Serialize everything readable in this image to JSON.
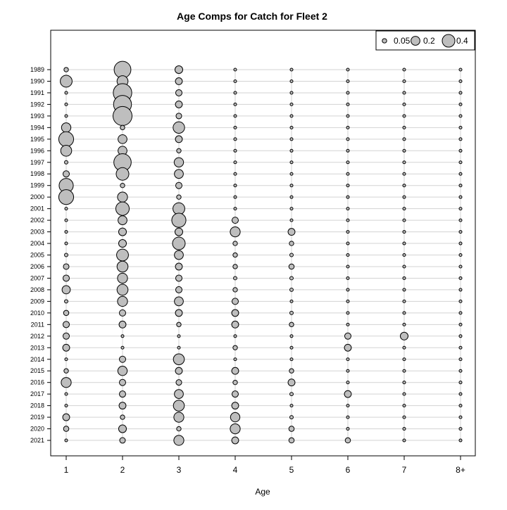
{
  "chart_data": {
    "type": "scatter",
    "title": "Age Comps for Catch for Fleet 2",
    "xlabel": "Age",
    "ylabel": "",
    "x_tick_labels": [
      "1",
      "2",
      "3",
      "4",
      "5",
      "6",
      "7",
      "8+"
    ],
    "years": [
      1989,
      1990,
      1991,
      1992,
      1993,
      1994,
      1995,
      1996,
      1997,
      1998,
      1999,
      2000,
      2001,
      2002,
      2003,
      2004,
      2005,
      2006,
      2007,
      2008,
      2009,
      2010,
      2011,
      2012,
      2013,
      2014,
      2015,
      2016,
      2017,
      2018,
      2019,
      2020,
      2021
    ],
    "grid": true,
    "legend_position": "top-right",
    "legend": [
      {
        "label": "0.05",
        "value": 0.05
      },
      {
        "label": "0.2",
        "value": 0.2
      },
      {
        "label": "0.4",
        "value": 0.4
      }
    ],
    "bubble_fill": "#bebebe",
    "bubble_stroke": "#000000",
    "grid_color": "#d3d3d3",
    "proportions": [
      [
        0.05,
        0.7,
        0.15,
        0.02,
        0.02,
        0.02,
        0.02,
        0.02
      ],
      [
        0.35,
        0.3,
        0.12,
        0.02,
        0.02,
        0.02,
        0.02,
        0.02
      ],
      [
        0.02,
        0.85,
        0.1,
        0.02,
        0.02,
        0.02,
        0.02,
        0.02
      ],
      [
        0.02,
        0.8,
        0.12,
        0.02,
        0.02,
        0.02,
        0.02,
        0.02
      ],
      [
        0.02,
        0.9,
        0.08,
        0.02,
        0.02,
        0.02,
        0.02,
        0.02
      ],
      [
        0.22,
        0.05,
        0.33,
        0.02,
        0.02,
        0.02,
        0.02,
        0.02
      ],
      [
        0.55,
        0.2,
        0.12,
        0.02,
        0.02,
        0.02,
        0.02,
        0.02
      ],
      [
        0.3,
        0.2,
        0.05,
        0.02,
        0.02,
        0.02,
        0.02,
        0.02
      ],
      [
        0.03,
        0.75,
        0.22,
        0.02,
        0.02,
        0.02,
        0.02,
        0.02
      ],
      [
        0.1,
        0.4,
        0.2,
        0.02,
        0.02,
        0.02,
        0.02,
        0.02
      ],
      [
        0.5,
        0.05,
        0.1,
        0.02,
        0.02,
        0.02,
        0.02,
        0.02
      ],
      [
        0.55,
        0.25,
        0.05,
        0.02,
        0.02,
        0.02,
        0.02,
        0.02
      ],
      [
        0.02,
        0.45,
        0.35,
        0.02,
        0.02,
        0.02,
        0.02,
        0.02
      ],
      [
        0.02,
        0.2,
        0.5,
        0.1,
        0.02,
        0.02,
        0.02,
        0.02
      ],
      [
        0.02,
        0.15,
        0.15,
        0.25,
        0.12,
        0.02,
        0.02,
        0.02
      ],
      [
        0.02,
        0.15,
        0.4,
        0.05,
        0.05,
        0.02,
        0.02,
        0.02
      ],
      [
        0.03,
        0.35,
        0.2,
        0.05,
        0.03,
        0.02,
        0.02,
        0.02
      ],
      [
        0.08,
        0.3,
        0.12,
        0.05,
        0.07,
        0.02,
        0.02,
        0.02
      ],
      [
        0.1,
        0.25,
        0.1,
        0.03,
        0.03,
        0.02,
        0.02,
        0.02
      ],
      [
        0.17,
        0.3,
        0.1,
        0.05,
        0.03,
        0.02,
        0.02,
        0.02
      ],
      [
        0.03,
        0.25,
        0.2,
        0.1,
        0.02,
        0.02,
        0.02,
        0.02
      ],
      [
        0.07,
        0.1,
        0.12,
        0.12,
        0.03,
        0.02,
        0.02,
        0.02
      ],
      [
        0.1,
        0.12,
        0.05,
        0.12,
        0.05,
        0.02,
        0.02,
        0.02
      ],
      [
        0.1,
        0.02,
        0.02,
        0.02,
        0.02,
        0.1,
        0.15,
        0.02
      ],
      [
        0.12,
        0.02,
        0.02,
        0.05,
        0.02,
        0.12,
        0.02,
        0.02
      ],
      [
        0.02,
        0.1,
        0.3,
        0.02,
        0.02,
        0.02,
        0.02,
        0.02
      ],
      [
        0.05,
        0.22,
        0.12,
        0.12,
        0.05,
        0.02,
        0.02,
        0.02
      ],
      [
        0.25,
        0.1,
        0.08,
        0.05,
        0.12,
        0.02,
        0.02,
        0.02
      ],
      [
        0.02,
        0.1,
        0.2,
        0.1,
        0.03,
        0.12,
        0.02,
        0.02
      ],
      [
        0.02,
        0.12,
        0.3,
        0.12,
        0.02,
        0.02,
        0.02,
        0.02
      ],
      [
        0.12,
        0.05,
        0.25,
        0.22,
        0.03,
        0.02,
        0.02,
        0.02
      ],
      [
        0.07,
        0.15,
        0.05,
        0.25,
        0.07,
        0.02,
        0.02,
        0.02
      ],
      [
        0.02,
        0.08,
        0.25,
        0.12,
        0.07,
        0.07,
        0.02,
        0.02
      ]
    ]
  }
}
